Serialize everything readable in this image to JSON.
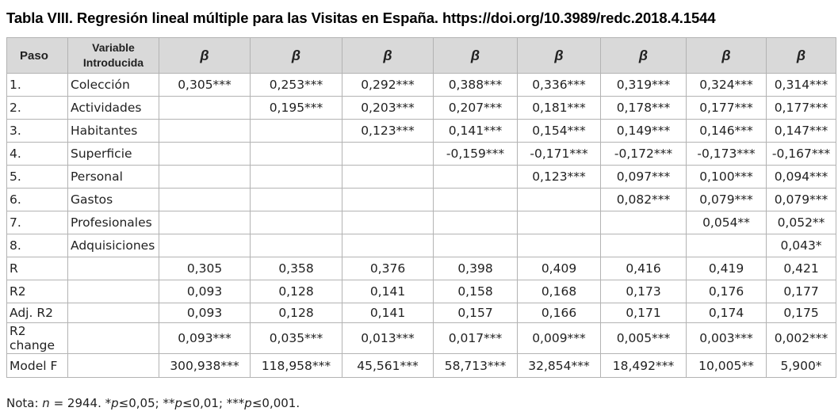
{
  "title": "Tabla VIII. Regresión lineal múltiple para las Visitas en España. https://doi.org/10.3989/redc.2018.4.1544",
  "headers": {
    "paso": "Paso",
    "variable_line1": "Variable",
    "variable_line2": "Introducida",
    "beta": [
      "β",
      "β",
      "β",
      "β",
      "β",
      "β",
      "β",
      "β"
    ]
  },
  "rows": [
    {
      "step": "1.",
      "variable": "Colección",
      "values": [
        "0,305***",
        "0,253***",
        "0,292***",
        "0,388***",
        "0,336***",
        "0,319***",
        "0,324***",
        "0,314***"
      ]
    },
    {
      "step": "2.",
      "variable": "Actividades",
      "values": [
        "",
        "0,195***",
        "0,203***",
        "0,207***",
        "0,181***",
        "0,178***",
        "0,177***",
        "0,177***"
      ]
    },
    {
      "step": "3.",
      "variable": "Habitantes",
      "values": [
        "",
        "",
        "0,123***",
        "0,141***",
        "0,154***",
        "0,149***",
        "0,146***",
        "0,147***"
      ]
    },
    {
      "step": "4.",
      "variable": "Superficie",
      "values": [
        "",
        "",
        "",
        "-0,159***",
        "-0,171***",
        "-0,172***",
        "-0,173***",
        "-0,167***"
      ]
    },
    {
      "step": "5.",
      "variable": "Personal",
      "values": [
        "",
        "",
        "",
        "",
        "0,123***",
        "0,097***",
        "0,100***",
        "0,094***"
      ]
    },
    {
      "step": "6.",
      "variable": "Gastos",
      "values": [
        "",
        "",
        "",
        "",
        "",
        "0,082***",
        "0,079***",
        "0,079***"
      ]
    },
    {
      "step": "7.",
      "variable": "Profesionales",
      "values": [
        "",
        "",
        "",
        "",
        "",
        "",
        "0,054**",
        "0,052**"
      ]
    },
    {
      "step": "8.",
      "variable": "Adquisiciones",
      "values": [
        "",
        "",
        "",
        "",
        "",
        "",
        "",
        "0,043*"
      ]
    },
    {
      "step": "R",
      "variable": "",
      "values": [
        "0,305",
        "0,358",
        "0,376",
        "0,398",
        "0,409",
        "0,416",
        "0,419",
        "0,421"
      ]
    },
    {
      "step": "R2",
      "variable": "",
      "values": [
        "0,093",
        "0,128",
        "0,141",
        "0,158",
        "0,168",
        "0,173",
        "0,176",
        "0,177"
      ]
    },
    {
      "step": "Adj. R2",
      "variable": "",
      "values": [
        "0,093",
        "0,128",
        "0,141",
        "0,157",
        "0,166",
        "0,171",
        "0,174",
        "0,175"
      ]
    },
    {
      "step": "R2 change",
      "variable": "",
      "values": [
        "0,093***",
        "0,035***",
        "0,013***",
        "0,017***",
        "0,009***",
        "0,005***",
        "0,003***",
        "0,002***"
      ]
    },
    {
      "step": "Model F",
      "variable": "",
      "values": [
        "300,938***",
        "118,958***",
        "45,561***",
        "58,713***",
        "32,854***",
        "18,492***",
        "10,005**",
        "5,900*"
      ]
    }
  ],
  "note": {
    "prefix": "Nota: ",
    "n_symbol": "n",
    "n_text": " = 2944. *",
    "p1": "p",
    "t1": "≤0,05; **",
    "p2": "p",
    "t2": "≤0,01; ***",
    "p3": "p",
    "t3": "≤0,001."
  }
}
